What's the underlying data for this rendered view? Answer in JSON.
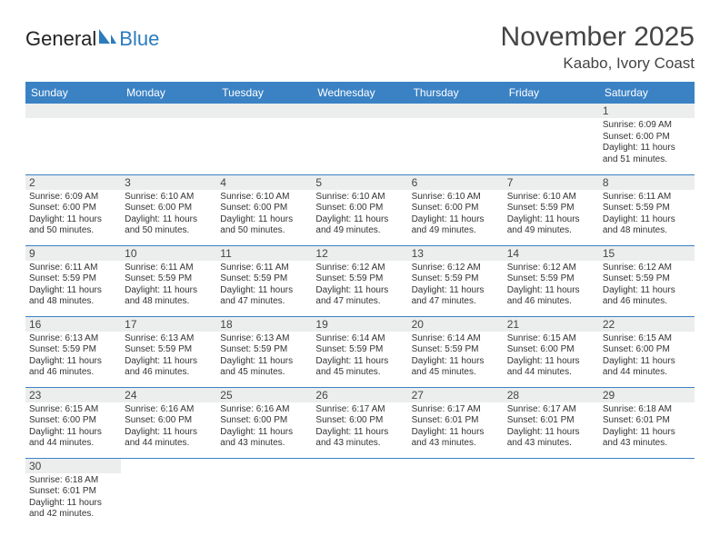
{
  "logo": {
    "word1": "General",
    "word2": "Blue"
  },
  "title": "November 2025",
  "location": "Kaabo, Ivory Coast",
  "colors": {
    "header_bg": "#3b82c4",
    "header_text": "#ffffff",
    "daynum_bg": "#eceded",
    "border": "#3b82c4",
    "text": "#333333",
    "logo_blue": "#2b7bbd"
  },
  "weekdays": [
    "Sunday",
    "Monday",
    "Tuesday",
    "Wednesday",
    "Thursday",
    "Friday",
    "Saturday"
  ],
  "days": {
    "1": {
      "sunrise": "6:09 AM",
      "sunset": "6:00 PM",
      "daylight": "11 hours and 51 minutes."
    },
    "2": {
      "sunrise": "6:09 AM",
      "sunset": "6:00 PM",
      "daylight": "11 hours and 50 minutes."
    },
    "3": {
      "sunrise": "6:10 AM",
      "sunset": "6:00 PM",
      "daylight": "11 hours and 50 minutes."
    },
    "4": {
      "sunrise": "6:10 AM",
      "sunset": "6:00 PM",
      "daylight": "11 hours and 50 minutes."
    },
    "5": {
      "sunrise": "6:10 AM",
      "sunset": "6:00 PM",
      "daylight": "11 hours and 49 minutes."
    },
    "6": {
      "sunrise": "6:10 AM",
      "sunset": "6:00 PM",
      "daylight": "11 hours and 49 minutes."
    },
    "7": {
      "sunrise": "6:10 AM",
      "sunset": "5:59 PM",
      "daylight": "11 hours and 49 minutes."
    },
    "8": {
      "sunrise": "6:11 AM",
      "sunset": "5:59 PM",
      "daylight": "11 hours and 48 minutes."
    },
    "9": {
      "sunrise": "6:11 AM",
      "sunset": "5:59 PM",
      "daylight": "11 hours and 48 minutes."
    },
    "10": {
      "sunrise": "6:11 AM",
      "sunset": "5:59 PM",
      "daylight": "11 hours and 48 minutes."
    },
    "11": {
      "sunrise": "6:11 AM",
      "sunset": "5:59 PM",
      "daylight": "11 hours and 47 minutes."
    },
    "12": {
      "sunrise": "6:12 AM",
      "sunset": "5:59 PM",
      "daylight": "11 hours and 47 minutes."
    },
    "13": {
      "sunrise": "6:12 AM",
      "sunset": "5:59 PM",
      "daylight": "11 hours and 47 minutes."
    },
    "14": {
      "sunrise": "6:12 AM",
      "sunset": "5:59 PM",
      "daylight": "11 hours and 46 minutes."
    },
    "15": {
      "sunrise": "6:12 AM",
      "sunset": "5:59 PM",
      "daylight": "11 hours and 46 minutes."
    },
    "16": {
      "sunrise": "6:13 AM",
      "sunset": "5:59 PM",
      "daylight": "11 hours and 46 minutes."
    },
    "17": {
      "sunrise": "6:13 AM",
      "sunset": "5:59 PM",
      "daylight": "11 hours and 46 minutes."
    },
    "18": {
      "sunrise": "6:13 AM",
      "sunset": "5:59 PM",
      "daylight": "11 hours and 45 minutes."
    },
    "19": {
      "sunrise": "6:14 AM",
      "sunset": "5:59 PM",
      "daylight": "11 hours and 45 minutes."
    },
    "20": {
      "sunrise": "6:14 AM",
      "sunset": "5:59 PM",
      "daylight": "11 hours and 45 minutes."
    },
    "21": {
      "sunrise": "6:15 AM",
      "sunset": "6:00 PM",
      "daylight": "11 hours and 44 minutes."
    },
    "22": {
      "sunrise": "6:15 AM",
      "sunset": "6:00 PM",
      "daylight": "11 hours and 44 minutes."
    },
    "23": {
      "sunrise": "6:15 AM",
      "sunset": "6:00 PM",
      "daylight": "11 hours and 44 minutes."
    },
    "24": {
      "sunrise": "6:16 AM",
      "sunset": "6:00 PM",
      "daylight": "11 hours and 44 minutes."
    },
    "25": {
      "sunrise": "6:16 AM",
      "sunset": "6:00 PM",
      "daylight": "11 hours and 43 minutes."
    },
    "26": {
      "sunrise": "6:17 AM",
      "sunset": "6:00 PM",
      "daylight": "11 hours and 43 minutes."
    },
    "27": {
      "sunrise": "6:17 AM",
      "sunset": "6:01 PM",
      "daylight": "11 hours and 43 minutes."
    },
    "28": {
      "sunrise": "6:17 AM",
      "sunset": "6:01 PM",
      "daylight": "11 hours and 43 minutes."
    },
    "29": {
      "sunrise": "6:18 AM",
      "sunset": "6:01 PM",
      "daylight": "11 hours and 43 minutes."
    },
    "30": {
      "sunrise": "6:18 AM",
      "sunset": "6:01 PM",
      "daylight": "11 hours and 42 minutes."
    }
  },
  "labels": {
    "sunrise": "Sunrise:",
    "sunset": "Sunset:",
    "daylight": "Daylight:"
  },
  "layout": {
    "first_weekday_index": 6,
    "days_in_month": 30
  }
}
